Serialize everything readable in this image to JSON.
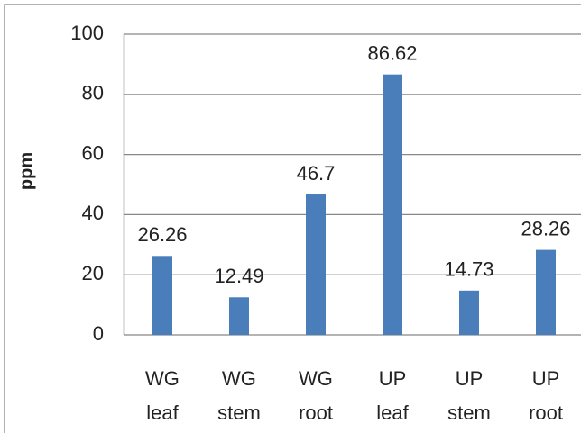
{
  "chart_data": {
    "type": "bar",
    "y_label": "ppm",
    "categories": [
      [
        "WG",
        "leaf"
      ],
      [
        "WG",
        "stem"
      ],
      [
        "WG",
        "root"
      ],
      [
        "UP",
        "leaf"
      ],
      [
        "UP",
        "stem"
      ],
      [
        "UP",
        "root"
      ]
    ],
    "values": [
      26.26,
      12.49,
      46.7,
      86.62,
      14.73,
      28.26
    ],
    "color": "#4a7ebb",
    "ylim": [
      0,
      100
    ],
    "yticks": [
      0,
      20,
      40,
      60,
      80,
      100
    ],
    "grid": true
  }
}
